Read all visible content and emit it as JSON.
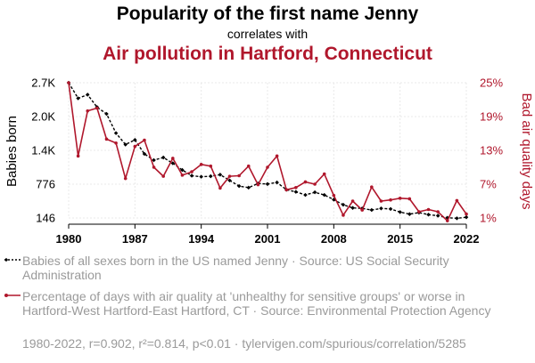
{
  "chart_data": {
    "type": "line",
    "title": "Popularity of the first name Jenny",
    "subtitle": "correlates with",
    "title2": "Air pollution in Hartford, Connecticut",
    "ylabel_left": "Babies born",
    "ylabel_right": "Bad air quality days",
    "x_ticks": [
      "1980",
      "1987",
      "1994",
      "2001",
      "2008",
      "2015",
      "2022"
    ],
    "y_left_ticks": [
      "2.7K",
      "2.0K",
      "1.4K",
      "776",
      "146"
    ],
    "y_right_ticks": [
      "25%",
      "19%",
      "13%",
      "7%",
      "1%"
    ],
    "xlim": [
      1980,
      2022
    ],
    "ylim_left": [
      146,
      2750
    ],
    "ylim_right": [
      1,
      25
    ],
    "series": [
      {
        "name": "Babies of all sexes born in the US named Jenny",
        "color": "#000000",
        "axis": "left",
        "x": [
          1980,
          1981,
          1982,
          1983,
          1984,
          1985,
          1986,
          1987,
          1988,
          1989,
          1990,
          1991,
          1992,
          1993,
          1994,
          1995,
          1996,
          1997,
          1998,
          1999,
          2000,
          2001,
          2002,
          2003,
          2004,
          2005,
          2006,
          2007,
          2008,
          2009,
          2010,
          2011,
          2012,
          2013,
          2014,
          2015,
          2016,
          2017,
          2018,
          2019,
          2020,
          2021,
          2022
        ],
        "values": [
          2750,
          2450,
          2520,
          2280,
          2150,
          1780,
          1560,
          1650,
          1380,
          1260,
          1310,
          1200,
          1070,
          960,
          940,
          950,
          980,
          870,
          760,
          730,
          810,
          800,
          830,
          690,
          650,
          590,
          640,
          590,
          500,
          400,
          340,
          330,
          300,
          330,
          320,
          260,
          220,
          250,
          210,
          190,
          150,
          140,
          160
        ]
      },
      {
        "name": "Percentage of days with air quality at 'unhealthy for sensitive groups' or worse in Hartford-West Hartford-East Hartford, CT",
        "color": "#b0172c",
        "axis": "right",
        "x": [
          1980,
          1981,
          1982,
          1983,
          1984,
          1985,
          1986,
          1987,
          1988,
          1989,
          1990,
          1991,
          1992,
          1993,
          1994,
          1995,
          1996,
          1997,
          1998,
          1999,
          2000,
          2001,
          2002,
          2003,
          2004,
          2005,
          2006,
          2007,
          2008,
          2009,
          2010,
          2011,
          2012,
          2013,
          2014,
          2015,
          2016,
          2017,
          2018,
          2019,
          2020,
          2021,
          2022
        ],
        "values": [
          25,
          12,
          20,
          20.5,
          15,
          14.3,
          8,
          13.7,
          14.8,
          10,
          8.4,
          11.6,
          8.6,
          9.2,
          10.5,
          10.2,
          6.3,
          8.4,
          8.5,
          10.2,
          6.9,
          10,
          12,
          6,
          6.4,
          7.4,
          7,
          8.8,
          5,
          1.5,
          4,
          2.4,
          6.5,
          4,
          4.2,
          4.5,
          4.4,
          2.1,
          2.5,
          2.1,
          0.5,
          4.1,
          1.7
        ]
      }
    ],
    "legend": [
      {
        "text": "Babies of all sexes born in the US named Jenny · Source: US Social Security Administration",
        "color": "#000000"
      },
      {
        "text": "Percentage of days with air quality at 'unhealthy for sensitive groups' or worse in Hartford-West Hartford-East Hartford, CT · Source: Environmental Protection Agency",
        "color": "#b0172c"
      }
    ],
    "footer": "1980-2022, r=0.902, r²=0.814, p<0.01 · tylervigen.com/spurious/correlation/5285",
    "grid": true,
    "legend_placement": "bottom"
  }
}
